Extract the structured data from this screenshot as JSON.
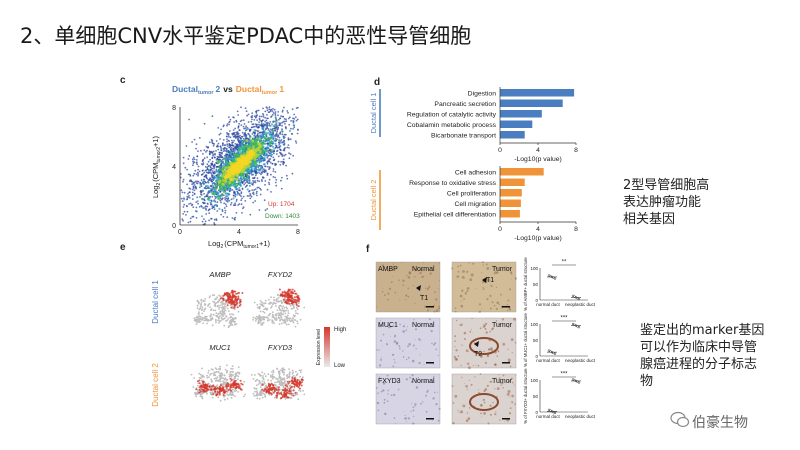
{
  "slide": {
    "title": "2、单细胞CNV水平鉴定PDAC中的恶性导管细胞",
    "note1": [
      "2型导管细胞高",
      "表达肿瘤功能",
      "相关基因"
    ],
    "note2": [
      "鉴定出的marker基因",
      "可以作为临床中导管",
      "腺癌进程的分子标志",
      "物"
    ],
    "watermark": "伯豪生物"
  },
  "colors": {
    "blue": "#4a7ec0",
    "orange": "#f0943a",
    "red": "#d4372c",
    "green": "#2e8b3a"
  },
  "panel_c": {
    "letter": "c",
    "title_a": "Ductal",
    "title_a_sub": "tumor",
    "title_a_num": "2",
    "title_vs": "vs",
    "title_b": "Ductal",
    "title_b_sub": "tumor",
    "title_b_num": "1",
    "xlabel_pre": "Log",
    "xlabel_sub": "2",
    "xlabel_mid": "(CPM",
    "xlabel_sub2": "tumor1",
    "xlabel_post": "+1)",
    "ylabel_pre": "Log",
    "ylabel_sub": "2",
    "ylabel_mid": "(CPM",
    "ylabel_sub2": "tumor2",
    "ylabel_post": "+1)",
    "ticks": [
      "0",
      "4",
      "8"
    ],
    "up": "Up: 1704",
    "down": "Down: 1403"
  },
  "panel_d": {
    "letter": "d",
    "group1": "Ductal cell 1",
    "group2": "Ductal cell 2",
    "axis_label": "-Log10(p value)",
    "ticks": [
      "0",
      "4",
      "8"
    ],
    "cell1_terms": [
      {
        "label": "Digestion",
        "value": 7.8
      },
      {
        "label": "Pancreatic secretion",
        "value": 6.6
      },
      {
        "label": "Regulation of catalytic activity",
        "value": 4.4
      },
      {
        "label": "Cobalamin metabolic process",
        "value": 3.4
      },
      {
        "label": "Bicarbonate transport",
        "value": 2.6
      }
    ],
    "cell2_terms": [
      {
        "label": "Cell adhesion",
        "value": 4.6
      },
      {
        "label": "Response to oxidative stress",
        "value": 2.6
      },
      {
        "label": "Cell proliferation",
        "value": 2.3
      },
      {
        "label": "Cell migration",
        "value": 2.2
      },
      {
        "label": "Epithelial cell differentiation",
        "value": 2.1
      }
    ]
  },
  "panel_e": {
    "letter": "e",
    "group1": "Ductal cell 1",
    "group2": "Ductal cell 2",
    "genes_top": [
      "AMBP",
      "FXYD2"
    ],
    "genes_bottom": [
      "MUC1",
      "FXYD3"
    ],
    "legend_title": "Expression level",
    "legend_high": "High",
    "legend_low": "Low"
  },
  "panel_f": {
    "letter": "f",
    "rows": [
      {
        "gene": "AMBP",
        "normal": "Normal",
        "tumor": "Tumor",
        "tag": "T1",
        "tag2": "T1",
        "ylabel": "% of AMBP+ ductal structure",
        "sig": "**",
        "ticks": [
          "100",
          "50",
          "0"
        ],
        "normal_value": 72,
        "neo_value": 8
      },
      {
        "gene": "MUC1",
        "normal": "Normal",
        "tumor": "Tumor",
        "tag": "T2",
        "ylabel": "% of MUC1+ ductal structure",
        "sig": "***",
        "ticks": [
          "100",
          "50",
          "0"
        ],
        "normal_value": 12,
        "neo_value": 95
      },
      {
        "gene": "FXYD3",
        "normal": "Normal",
        "tumor": "Tumor",
        "ylabel": "% of FXYD3+ ductal structure",
        "sig": "***",
        "ticks": [
          "100",
          "50",
          "0"
        ],
        "normal_value": 2,
        "neo_value": 97
      }
    ],
    "xcat1": "normal duct",
    "xcat2": "neoplastic duct"
  }
}
